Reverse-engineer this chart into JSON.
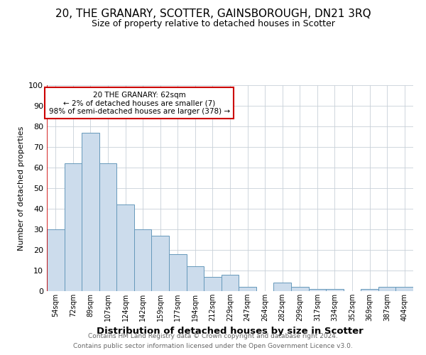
{
  "title": "20, THE GRANARY, SCOTTER, GAINSBOROUGH, DN21 3RQ",
  "subtitle": "Size of property relative to detached houses in Scotter",
  "xlabel": "Distribution of detached houses by size in Scotter",
  "ylabel": "Number of detached properties",
  "categories": [
    "54sqm",
    "72sqm",
    "89sqm",
    "107sqm",
    "124sqm",
    "142sqm",
    "159sqm",
    "177sqm",
    "194sqm",
    "212sqm",
    "229sqm",
    "247sqm",
    "264sqm",
    "282sqm",
    "299sqm",
    "317sqm",
    "334sqm",
    "352sqm",
    "369sqm",
    "387sqm",
    "404sqm"
  ],
  "values": [
    30,
    62,
    77,
    62,
    42,
    30,
    27,
    18,
    12,
    7,
    8,
    2,
    0,
    4,
    2,
    1,
    1,
    0,
    1,
    2,
    2
  ],
  "bar_color": "#ccdcec",
  "bar_edge_color": "#6699bb",
  "annotation_box_color": "#ffffff",
  "annotation_border_color": "#cc0000",
  "marker_line_color": "#cc0000",
  "annotation_text_line1": "20 THE GRANARY: 62sqm",
  "annotation_text_line2": "← 2% of detached houses are smaller (7)",
  "annotation_text_line3": "98% of semi-detached houses are larger (378) →",
  "footer_line1": "Contains HM Land Registry data © Crown copyright and database right 2024.",
  "footer_line2": "Contains public sector information licensed under the Open Government Licence v3.0.",
  "ylim": [
    0,
    100
  ],
  "yticks": [
    0,
    10,
    20,
    30,
    40,
    50,
    60,
    70,
    80,
    90,
    100
  ],
  "title_fontsize": 11,
  "subtitle_fontsize": 9,
  "xlabel_fontsize": 9.5,
  "ylabel_fontsize": 8,
  "tick_fontsize": 7,
  "annotation_fontsize": 7.5,
  "footer_fontsize": 6.5,
  "background_color": "#ffffff",
  "grid_color": "#c8d0d8"
}
